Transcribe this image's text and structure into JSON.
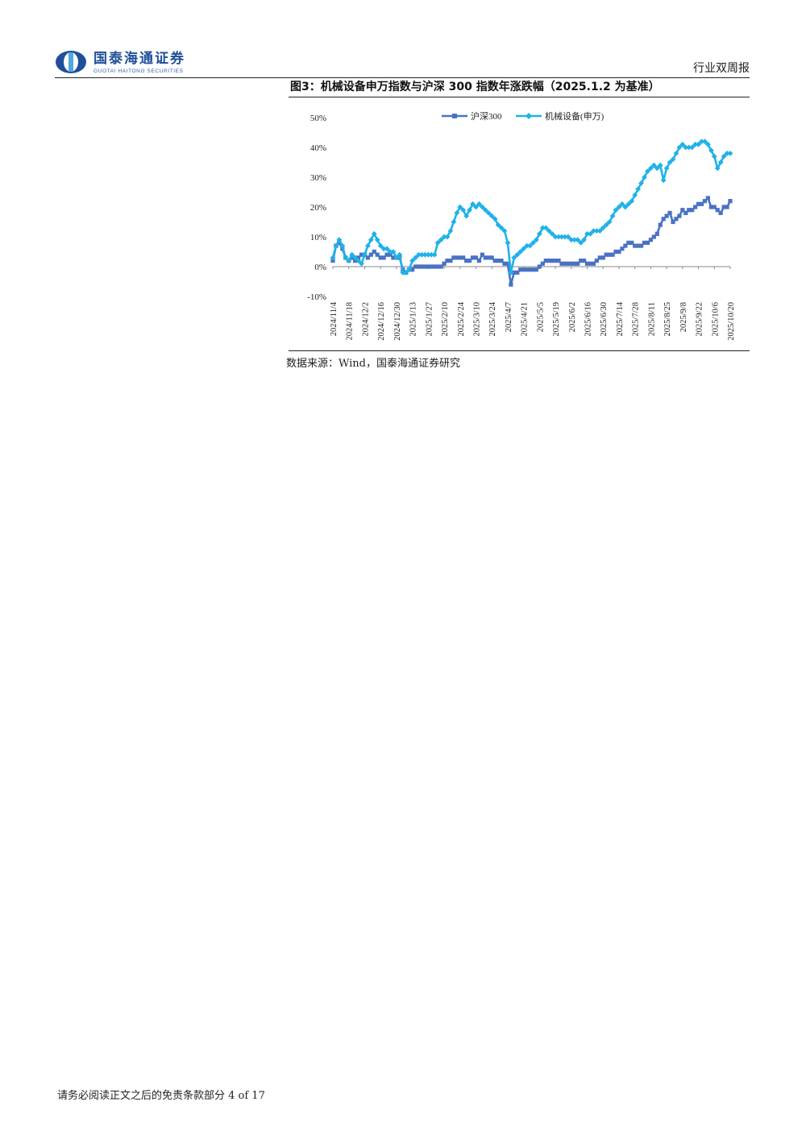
{
  "header": {
    "brand_cn": "国泰海通证券",
    "brand_en": "GUOTAI HAITONG SECURITIES",
    "report_type": "行业双周报",
    "brand_color": "#1f4f9a"
  },
  "figure": {
    "title": "图3：机械设备申万指数与沪深 300 指数年涨跌幅（2025.1.2 为基准）",
    "source": "数据来源：Wind，国泰海通证券研究"
  },
  "footer": {
    "text": "请务必阅读正文之后的免责条款部分 4 of 17"
  },
  "chart_data": {
    "type": "line",
    "title": "",
    "xlabel": "",
    "ylabel": "",
    "ylim": [
      -10,
      50
    ],
    "ytick_values": [
      -10,
      0,
      10,
      20,
      30,
      40,
      50
    ],
    "ytick_labels": [
      "-10%",
      "0%",
      "10%",
      "20%",
      "30%",
      "40%",
      "50%"
    ],
    "xtick_labels": [
      "2024/11/4",
      "2024/11/18",
      "2024/12/2",
      "2024/12/16",
      "2024/12/30",
      "2025/1/13",
      "2025/1/27",
      "2025/2/10",
      "2025/2/24",
      "2025/3/10",
      "2025/3/24",
      "2025/4/7",
      "2025/4/21",
      "2025/5/5",
      "2025/5/19",
      "2025/6/2",
      "2025/6/16",
      "2025/6/30",
      "2025/7/14",
      "2025/7/28",
      "2025/8/11",
      "2025/8/25",
      "2025/9/8",
      "2025/9/22",
      "2025/10/6",
      "2025/10/20"
    ],
    "legend_position": "top-center",
    "grid": false,
    "series": [
      {
        "name": "沪深300",
        "color": "#4a72c4",
        "marker": "square",
        "values": [
          [
            0,
            2
          ],
          [
            0.2,
            7
          ],
          [
            0.4,
            8
          ],
          [
            0.6,
            6
          ],
          [
            0.8,
            3
          ],
          [
            1.0,
            2
          ],
          [
            1.2,
            3
          ],
          [
            1.4,
            2
          ],
          [
            1.6,
            3
          ],
          [
            1.8,
            4
          ],
          [
            2.0,
            4
          ],
          [
            2.2,
            3
          ],
          [
            2.4,
            4
          ],
          [
            2.6,
            5
          ],
          [
            2.8,
            4
          ],
          [
            3.0,
            3
          ],
          [
            3.2,
            3
          ],
          [
            3.4,
            4
          ],
          [
            3.6,
            4
          ],
          [
            3.8,
            3
          ],
          [
            4.0,
            3
          ],
          [
            4.2,
            3
          ],
          [
            4.4,
            -1
          ],
          [
            4.6,
            -2
          ],
          [
            4.8,
            -1
          ],
          [
            5.0,
            -1
          ],
          [
            5.2,
            0
          ],
          [
            5.4,
            0
          ],
          [
            5.6,
            0
          ],
          [
            5.8,
            0
          ],
          [
            6.0,
            0
          ],
          [
            6.2,
            0
          ],
          [
            6.4,
            0
          ],
          [
            6.6,
            0
          ],
          [
            6.8,
            0
          ],
          [
            7.0,
            1
          ],
          [
            7.2,
            2
          ],
          [
            7.4,
            2
          ],
          [
            7.6,
            3
          ],
          [
            7.8,
            3
          ],
          [
            8.0,
            3
          ],
          [
            8.2,
            3
          ],
          [
            8.4,
            2
          ],
          [
            8.6,
            2
          ],
          [
            8.8,
            3
          ],
          [
            9.0,
            3
          ],
          [
            9.2,
            2
          ],
          [
            9.4,
            4
          ],
          [
            9.6,
            3
          ],
          [
            9.8,
            3
          ],
          [
            10.0,
            3
          ],
          [
            10.2,
            2
          ],
          [
            10.4,
            2
          ],
          [
            10.6,
            2
          ],
          [
            10.8,
            1
          ],
          [
            11.0,
            1
          ],
          [
            11.2,
            -6
          ],
          [
            11.4,
            -2
          ],
          [
            11.6,
            -2
          ],
          [
            11.8,
            -1
          ],
          [
            12.0,
            -1
          ],
          [
            12.2,
            -1
          ],
          [
            12.4,
            -1
          ],
          [
            12.6,
            -1
          ],
          [
            12.8,
            -1
          ],
          [
            13.0,
            0
          ],
          [
            13.2,
            1
          ],
          [
            13.4,
            2
          ],
          [
            13.6,
            2
          ],
          [
            13.8,
            2
          ],
          [
            14.0,
            2
          ],
          [
            14.2,
            2
          ],
          [
            14.4,
            1
          ],
          [
            14.6,
            1
          ],
          [
            14.8,
            1
          ],
          [
            15.0,
            1
          ],
          [
            15.2,
            1
          ],
          [
            15.4,
            1
          ],
          [
            15.6,
            2
          ],
          [
            15.8,
            2
          ],
          [
            16.0,
            1
          ],
          [
            16.2,
            1
          ],
          [
            16.4,
            1
          ],
          [
            16.6,
            2
          ],
          [
            16.8,
            3
          ],
          [
            17.0,
            3
          ],
          [
            17.2,
            4
          ],
          [
            17.4,
            4
          ],
          [
            17.6,
            4
          ],
          [
            17.8,
            5
          ],
          [
            18.0,
            5
          ],
          [
            18.2,
            6
          ],
          [
            18.4,
            7
          ],
          [
            18.6,
            8
          ],
          [
            18.8,
            8
          ],
          [
            19.0,
            7
          ],
          [
            19.2,
            7
          ],
          [
            19.4,
            7
          ],
          [
            19.6,
            8
          ],
          [
            19.8,
            8
          ],
          [
            20.0,
            9
          ],
          [
            20.2,
            10
          ],
          [
            20.4,
            11
          ],
          [
            20.6,
            14
          ],
          [
            20.8,
            16
          ],
          [
            21.0,
            17
          ],
          [
            21.2,
            18
          ],
          [
            21.4,
            15
          ],
          [
            21.6,
            16
          ],
          [
            21.8,
            17
          ],
          [
            22.0,
            19
          ],
          [
            22.2,
            18
          ],
          [
            22.4,
            19
          ],
          [
            22.6,
            19
          ],
          [
            22.8,
            20
          ],
          [
            23.0,
            21
          ],
          [
            23.2,
            21
          ],
          [
            23.4,
            22
          ],
          [
            23.6,
            23
          ],
          [
            23.8,
            20
          ],
          [
            24.0,
            20
          ],
          [
            24.2,
            19
          ],
          [
            24.4,
            18
          ],
          [
            24.6,
            20
          ],
          [
            24.8,
            20
          ],
          [
            25.0,
            22
          ]
        ]
      },
      {
        "name": "机械设备(申万)",
        "color": "#1fb2e8",
        "marker": "diamond",
        "values": [
          [
            0,
            3
          ],
          [
            0.2,
            7
          ],
          [
            0.4,
            9
          ],
          [
            0.6,
            7
          ],
          [
            0.8,
            3
          ],
          [
            1.0,
            2
          ],
          [
            1.2,
            4
          ],
          [
            1.4,
            3
          ],
          [
            1.6,
            2
          ],
          [
            1.8,
            1
          ],
          [
            2.0,
            4
          ],
          [
            2.2,
            7
          ],
          [
            2.4,
            9
          ],
          [
            2.6,
            11
          ],
          [
            2.8,
            9
          ],
          [
            3.0,
            7
          ],
          [
            3.2,
            6
          ],
          [
            3.4,
            6
          ],
          [
            3.6,
            5
          ],
          [
            3.8,
            5
          ],
          [
            4.0,
            3
          ],
          [
            4.2,
            4
          ],
          [
            4.4,
            -2
          ],
          [
            4.6,
            -2
          ],
          [
            4.8,
            -1
          ],
          [
            5.0,
            2
          ],
          [
            5.2,
            3
          ],
          [
            5.4,
            4
          ],
          [
            5.6,
            4
          ],
          [
            5.8,
            4
          ],
          [
            6.0,
            4
          ],
          [
            6.2,
            4
          ],
          [
            6.4,
            4
          ],
          [
            6.6,
            8
          ],
          [
            6.8,
            9
          ],
          [
            7.0,
            10
          ],
          [
            7.2,
            10
          ],
          [
            7.4,
            12
          ],
          [
            7.6,
            15
          ],
          [
            7.8,
            18
          ],
          [
            8.0,
            20
          ],
          [
            8.2,
            19
          ],
          [
            8.4,
            17
          ],
          [
            8.6,
            19
          ],
          [
            8.8,
            21
          ],
          [
            9.0,
            20
          ],
          [
            9.2,
            21
          ],
          [
            9.4,
            20
          ],
          [
            9.6,
            19
          ],
          [
            9.8,
            18
          ],
          [
            10.0,
            17
          ],
          [
            10.2,
            16
          ],
          [
            10.4,
            14
          ],
          [
            10.6,
            13
          ],
          [
            10.8,
            12
          ],
          [
            11.0,
            8
          ],
          [
            11.2,
            -2
          ],
          [
            11.4,
            3
          ],
          [
            11.6,
            4
          ],
          [
            11.8,
            5
          ],
          [
            12.0,
            6
          ],
          [
            12.2,
            7
          ],
          [
            12.4,
            7
          ],
          [
            12.6,
            8
          ],
          [
            12.8,
            9
          ],
          [
            13.0,
            11
          ],
          [
            13.2,
            13
          ],
          [
            13.4,
            13
          ],
          [
            13.6,
            12
          ],
          [
            13.8,
            11
          ],
          [
            14.0,
            10
          ],
          [
            14.2,
            10
          ],
          [
            14.4,
            10
          ],
          [
            14.6,
            10
          ],
          [
            14.8,
            10
          ],
          [
            15.0,
            9
          ],
          [
            15.2,
            9
          ],
          [
            15.4,
            9
          ],
          [
            15.6,
            8
          ],
          [
            15.8,
            9
          ],
          [
            16.0,
            11
          ],
          [
            16.2,
            11
          ],
          [
            16.4,
            12
          ],
          [
            16.6,
            12
          ],
          [
            16.8,
            12
          ],
          [
            17.0,
            13
          ],
          [
            17.2,
            14
          ],
          [
            17.4,
            15
          ],
          [
            17.6,
            17
          ],
          [
            17.8,
            19
          ],
          [
            18.0,
            20
          ],
          [
            18.2,
            21
          ],
          [
            18.4,
            20
          ],
          [
            18.6,
            21
          ],
          [
            18.8,
            22
          ],
          [
            19.0,
            24
          ],
          [
            19.2,
            26
          ],
          [
            19.4,
            28
          ],
          [
            19.6,
            30
          ],
          [
            19.8,
            32
          ],
          [
            20.0,
            33
          ],
          [
            20.2,
            34
          ],
          [
            20.4,
            33
          ],
          [
            20.6,
            34
          ],
          [
            20.8,
            29
          ],
          [
            21.0,
            33
          ],
          [
            21.2,
            35
          ],
          [
            21.4,
            36
          ],
          [
            21.6,
            38
          ],
          [
            21.8,
            40
          ],
          [
            22.0,
            41
          ],
          [
            22.2,
            40
          ],
          [
            22.4,
            40
          ],
          [
            22.6,
            40
          ],
          [
            22.8,
            41
          ],
          [
            23.0,
            41
          ],
          [
            23.2,
            42
          ],
          [
            23.4,
            42
          ],
          [
            23.6,
            41
          ],
          [
            23.8,
            39
          ],
          [
            24.0,
            37
          ],
          [
            24.2,
            33
          ],
          [
            24.4,
            35
          ],
          [
            24.6,
            37
          ],
          [
            24.8,
            38
          ],
          [
            25.0,
            38
          ]
        ]
      }
    ]
  }
}
